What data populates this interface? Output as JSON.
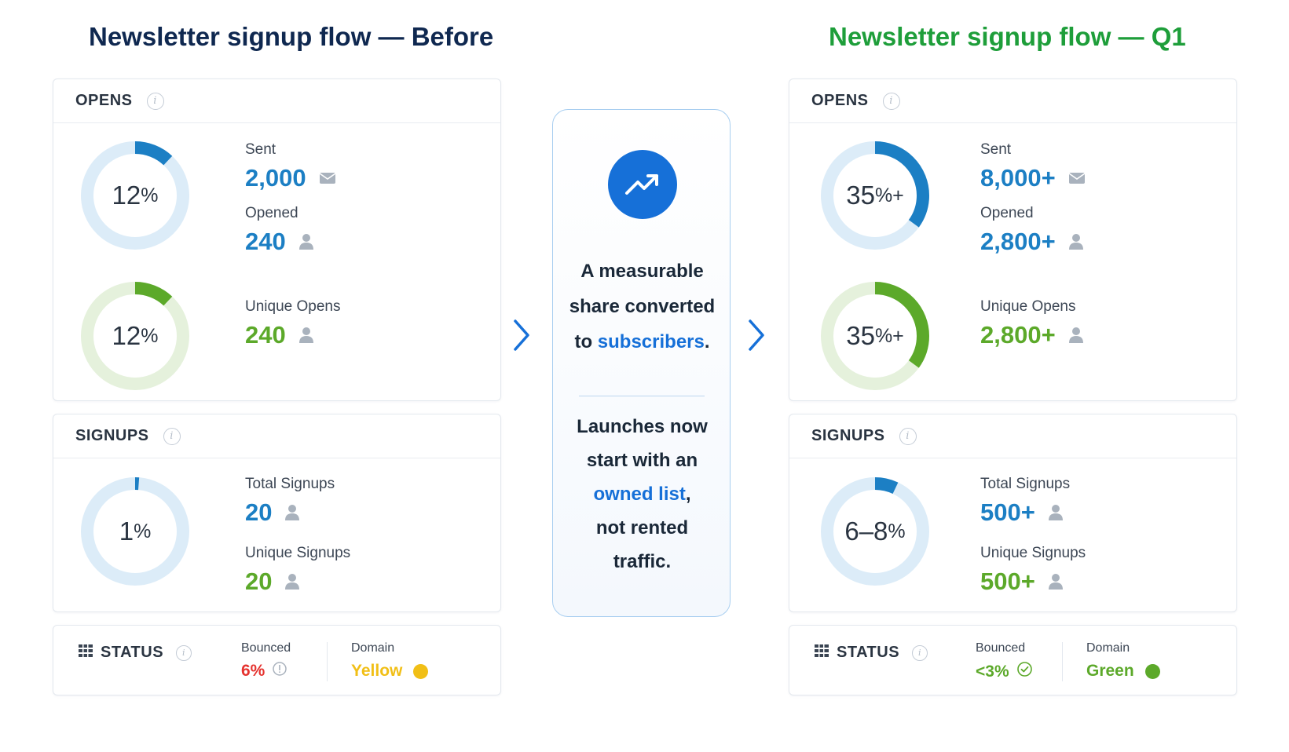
{
  "before": {
    "title": "Newsletter signup flow — Before",
    "opens": {
      "header": "OPENS",
      "ring1": {
        "value": "12",
        "unit": "%",
        "fraction": 0.12
      },
      "ring2": {
        "value": "12",
        "unit": "%",
        "fraction": 0.12
      },
      "sent_label": "Sent",
      "sent_value": "2,000",
      "opened_label": "Opened",
      "opened_value": "240",
      "unique_label": "Unique Opens",
      "unique_value": "240"
    },
    "signups": {
      "header": "SIGNUPS",
      "ring": {
        "value": "1",
        "unit": "%",
        "fraction": 0.01
      },
      "total_label": "Total Signups",
      "total_value": "20",
      "unique_label": "Unique Signups",
      "unique_value": "20"
    },
    "status": {
      "header": "STATUS",
      "bounced_label": "Bounced",
      "bounced_value": "6%",
      "domain_label": "Domain",
      "domain_value": "Yellow"
    }
  },
  "after": {
    "title": "Newsletter signup flow — Q1",
    "opens": {
      "header": "OPENS",
      "ring1": {
        "value": "35",
        "unit": "%+",
        "fraction": 0.35
      },
      "ring2": {
        "value": "35",
        "unit": "%+",
        "fraction": 0.35
      },
      "sent_label": "Sent",
      "sent_value": "8,000+",
      "opened_label": "Opened",
      "opened_value": "2,800+",
      "unique_label": "Unique Opens",
      "unique_value": "2,800+"
    },
    "signups": {
      "header": "SIGNUPS",
      "ring": {
        "value": "6–8",
        "unit": "%",
        "fraction": 0.07
      },
      "total_label": "Total Signups",
      "total_value": "500+",
      "unique_label": "Unique Signups",
      "unique_value": "500+"
    },
    "status": {
      "header": "STATUS",
      "bounced_label": "Bounced",
      "bounced_value": "<3%",
      "domain_label": "Domain",
      "domain_value": "Green"
    }
  },
  "center": {
    "line1": "A measurable",
    "line2": "share converted",
    "line3_pre": "to ",
    "line3_hl": "subscribers",
    "line3_post": ".",
    "line4": "Launches now",
    "line5": "start with an",
    "line6_hl": "owned list",
    "line6_post": ",",
    "line7": "not rented",
    "line8": "traffic."
  },
  "colors": {
    "blue": "#1c7fc4",
    "green": "#5ca92a",
    "ring_blue_track": "#dcecf8",
    "ring_green_track": "#e5f1dc",
    "red": "#e5332f",
    "yellow": "#f1bf16",
    "accent": "#1670d8"
  }
}
